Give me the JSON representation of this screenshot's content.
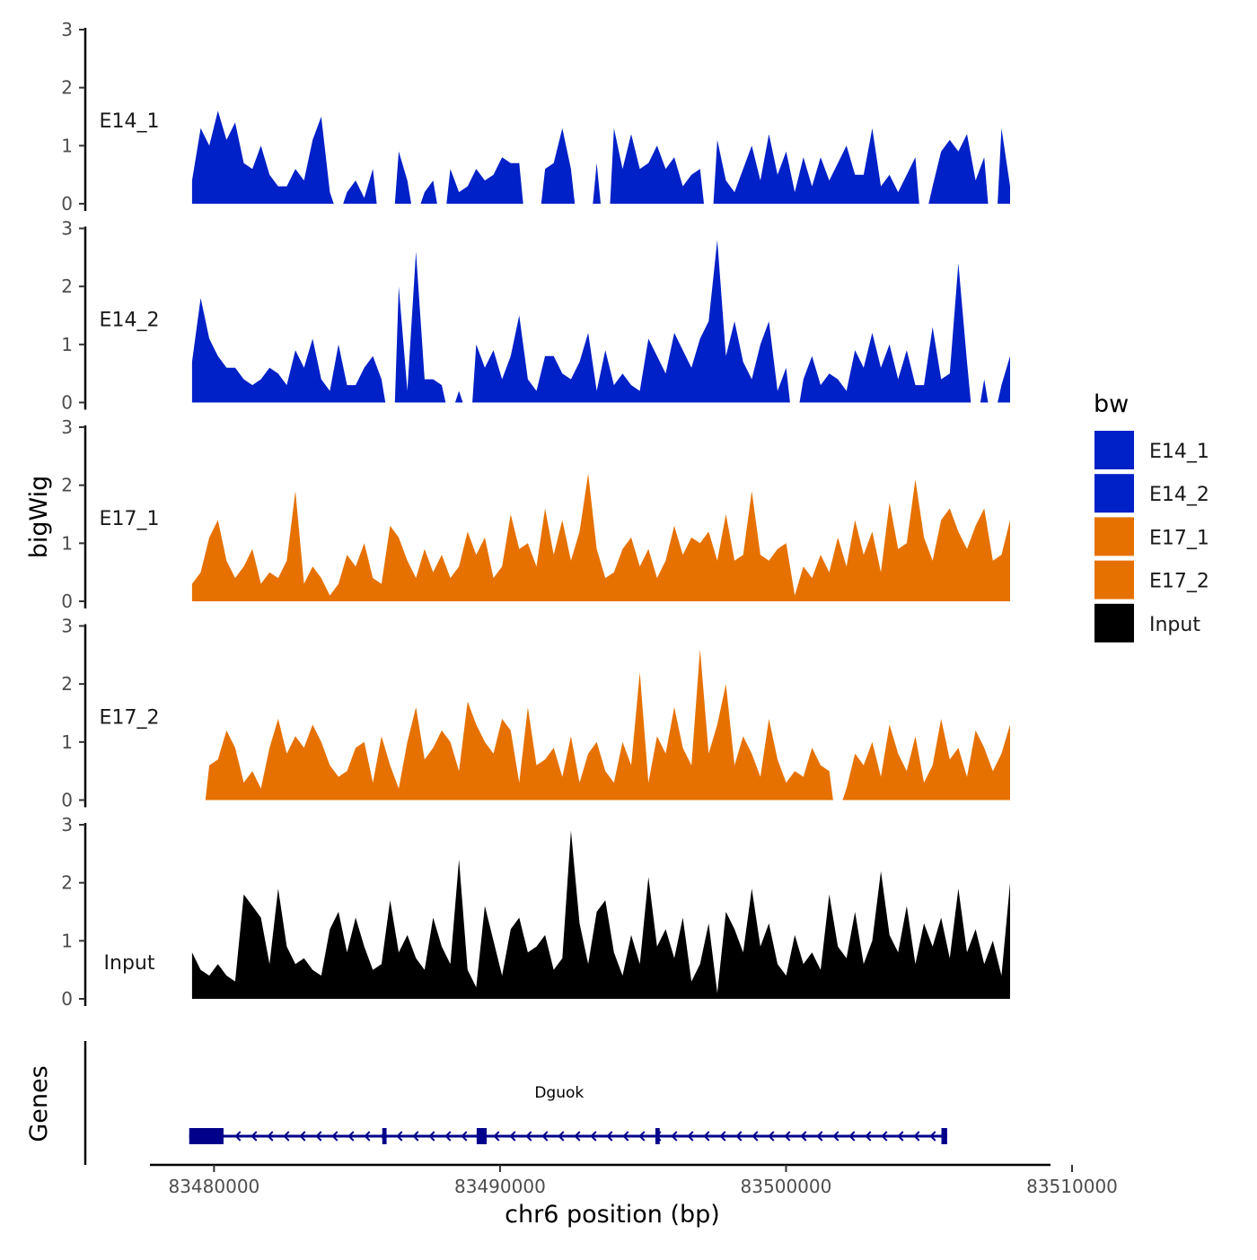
{
  "chart_data": {
    "type": "area",
    "title": "",
    "ylabel": "bigWig",
    "genes_label": "Genes",
    "xlabel": "chr6 position (bp)",
    "xlim": [
      83479800,
      83510000
    ],
    "x_ticks": [
      83480000,
      83490000,
      83500000,
      83510000
    ],
    "x_tick_labels": [
      "83480000",
      "83490000",
      "83500000",
      "83510000"
    ],
    "ylim": [
      0,
      3
    ],
    "y_ticks": [
      0,
      1,
      2,
      3
    ],
    "y_tick_labels": [
      "0",
      "1",
      "2",
      "3"
    ],
    "legend": {
      "title": "bw",
      "position": "right",
      "entries": [
        {
          "name": "E14_1",
          "color": "#0020C8"
        },
        {
          "name": "E14_2",
          "color": "#0020C8"
        },
        {
          "name": "E17_1",
          "color": "#E67100"
        },
        {
          "name": "E17_2",
          "color": "#E67100"
        },
        {
          "name": "Input",
          "color": "#000000"
        }
      ]
    },
    "bin_start": 83480300,
    "bin_end": 83508900,
    "bins": 96,
    "series": [
      {
        "name": "E14_1",
        "color": "#0020C8",
        "values": [
          0.4,
          1.3,
          1.0,
          1.6,
          1.1,
          1.4,
          0.7,
          0.6,
          1.0,
          0.5,
          0.3,
          0.3,
          0.6,
          0.4,
          1.1,
          1.5,
          0.2,
          null,
          0.2,
          0.4,
          0.1,
          0.6,
          null,
          null,
          0.9,
          0.4,
          null,
          0.2,
          0.4,
          null,
          0.6,
          0.2,
          0.3,
          0.6,
          0.4,
          0.5,
          0.8,
          0.7,
          0.7,
          null,
          null,
          0.6,
          0.7,
          1.3,
          0.6,
          null,
          null,
          0.7,
          null,
          1.3,
          0.6,
          1.2,
          0.6,
          0.7,
          1.0,
          0.6,
          0.8,
          0.3,
          0.5,
          0.6,
          null,
          1.1,
          0.4,
          0.2,
          0.6,
          1.0,
          0.4,
          1.2,
          0.5,
          0.9,
          0.2,
          0.8,
          0.3,
          0.8,
          0.4,
          0.7,
          1.0,
          0.5,
          0.5,
          1.3,
          0.3,
          0.5,
          0.2,
          0.5,
          0.8,
          null,
          0.3,
          0.9,
          1.1,
          0.9,
          1.2,
          0.4,
          0.8,
          null,
          1.3,
          0.3
        ]
      },
      {
        "name": "E14_2",
        "color": "#0020C8",
        "values": [
          0.7,
          1.8,
          1.1,
          0.8,
          0.6,
          0.6,
          0.4,
          0.3,
          0.4,
          0.6,
          0.5,
          0.3,
          0.9,
          0.6,
          1.1,
          0.4,
          0.2,
          1.0,
          0.3,
          0.3,
          0.6,
          0.8,
          0.4,
          null,
          2.0,
          0.2,
          2.6,
          0.4,
          0.4,
          0.3,
          null,
          0.2,
          null,
          1.0,
          0.6,
          0.9,
          0.4,
          0.8,
          1.5,
          0.4,
          0.2,
          0.8,
          0.8,
          0.5,
          0.4,
          0.7,
          1.2,
          0.2,
          0.9,
          0.3,
          0.5,
          0.3,
          0.2,
          1.1,
          0.8,
          0.5,
          1.2,
          0.9,
          0.6,
          1.1,
          1.4,
          2.8,
          0.8,
          1.4,
          0.7,
          0.4,
          1.0,
          1.4,
          0.2,
          0.6,
          null,
          0.4,
          0.8,
          0.3,
          0.5,
          0.4,
          0.2,
          0.9,
          0.6,
          1.2,
          0.6,
          1.0,
          0.4,
          0.9,
          0.3,
          0.3,
          1.3,
          0.4,
          0.5,
          2.4,
          0.7,
          null,
          0.4,
          null,
          0.3,
          0.8
        ]
      },
      {
        "name": "E17_1",
        "color": "#E67100",
        "values": [
          0.3,
          0.5,
          1.1,
          1.4,
          0.7,
          0.4,
          0.6,
          0.9,
          0.3,
          0.5,
          0.4,
          0.7,
          1.9,
          0.3,
          0.6,
          0.4,
          0.1,
          0.3,
          0.8,
          0.6,
          1.0,
          0.4,
          0.3,
          1.3,
          1.1,
          0.7,
          0.4,
          0.9,
          0.5,
          0.8,
          0.4,
          0.6,
          1.2,
          0.8,
          1.1,
          0.4,
          0.6,
          1.5,
          0.9,
          1.0,
          0.6,
          1.6,
          0.8,
          1.4,
          0.7,
          1.2,
          2.2,
          0.9,
          0.4,
          0.5,
          0.9,
          1.1,
          0.6,
          0.9,
          0.4,
          0.7,
          1.3,
          0.8,
          1.1,
          1.0,
          1.2,
          0.7,
          1.5,
          0.7,
          0.8,
          1.9,
          0.8,
          0.7,
          0.9,
          1.0,
          0.1,
          0.6,
          0.4,
          0.8,
          0.5,
          1.1,
          0.6,
          1.4,
          0.8,
          1.2,
          0.5,
          1.7,
          0.9,
          1.0,
          2.1,
          1.1,
          0.7,
          1.4,
          1.6,
          1.2,
          0.9,
          1.3,
          1.6,
          0.7,
          0.8,
          1.4
        ]
      },
      {
        "name": "E17_2",
        "color": "#E67100",
        "values": [
          null,
          null,
          0.6,
          0.7,
          1.2,
          0.9,
          0.3,
          0.5,
          0.2,
          0.9,
          1.4,
          0.8,
          1.1,
          0.9,
          1.3,
          1.0,
          0.6,
          0.4,
          0.5,
          0.9,
          1.0,
          0.3,
          1.1,
          0.6,
          0.2,
          1.0,
          1.6,
          0.7,
          0.9,
          1.2,
          1.0,
          0.5,
          1.7,
          1.3,
          1.0,
          0.8,
          1.4,
          1.2,
          0.3,
          1.6,
          0.6,
          0.7,
          0.9,
          0.4,
          1.1,
          0.3,
          0.8,
          1.0,
          0.5,
          0.3,
          1.0,
          0.6,
          2.2,
          0.3,
          1.1,
          0.8,
          1.6,
          0.9,
          0.6,
          2.6,
          0.8,
          1.3,
          2.0,
          0.6,
          1.1,
          0.8,
          0.4,
          1.4,
          0.7,
          0.3,
          0.5,
          0.4,
          0.9,
          0.6,
          0.5,
          null,
          0.2,
          0.8,
          0.6,
          1.0,
          0.4,
          1.3,
          0.8,
          0.5,
          1.1,
          0.3,
          0.6,
          1.4,
          0.7,
          0.9,
          0.4,
          1.2,
          0.9,
          0.5,
          0.8,
          1.3
        ]
      },
      {
        "name": "Input",
        "color": "#000000",
        "values": [
          0.8,
          0.5,
          0.4,
          0.6,
          0.4,
          0.3,
          1.8,
          1.6,
          1.4,
          0.6,
          1.9,
          0.9,
          0.6,
          0.7,
          0.5,
          0.4,
          1.2,
          1.5,
          0.8,
          1.4,
          0.9,
          0.5,
          0.6,
          1.7,
          0.8,
          1.1,
          0.7,
          0.5,
          1.4,
          0.9,
          0.6,
          2.4,
          0.5,
          0.2,
          1.6,
          1.0,
          0.4,
          1.2,
          1.4,
          0.8,
          0.9,
          1.1,
          0.5,
          0.7,
          2.9,
          1.3,
          0.6,
          1.5,
          1.7,
          0.8,
          0.4,
          1.1,
          0.6,
          2.1,
          0.9,
          1.2,
          0.7,
          1.4,
          0.3,
          0.6,
          1.3,
          0.1,
          1.5,
          1.2,
          0.8,
          1.9,
          0.9,
          1.3,
          0.6,
          0.4,
          1.1,
          0.6,
          0.8,
          0.5,
          1.8,
          0.9,
          0.7,
          1.5,
          0.6,
          1.0,
          2.2,
          1.1,
          0.8,
          1.6,
          0.6,
          1.3,
          0.9,
          1.4,
          0.7,
          1.9,
          0.8,
          1.2,
          0.6,
          1.0,
          0.4,
          2.0
        ]
      }
    ],
    "genes": [
      {
        "name": "Dguok",
        "strand": "-",
        "start": 83480200,
        "end": 83506700,
        "exons": [
          [
            83480200,
            83481400
          ],
          [
            83486950,
            83487100
          ],
          [
            83490250,
            83490600
          ],
          [
            83496500,
            83496650
          ],
          [
            83506500,
            83506700
          ]
        ]
      }
    ]
  }
}
